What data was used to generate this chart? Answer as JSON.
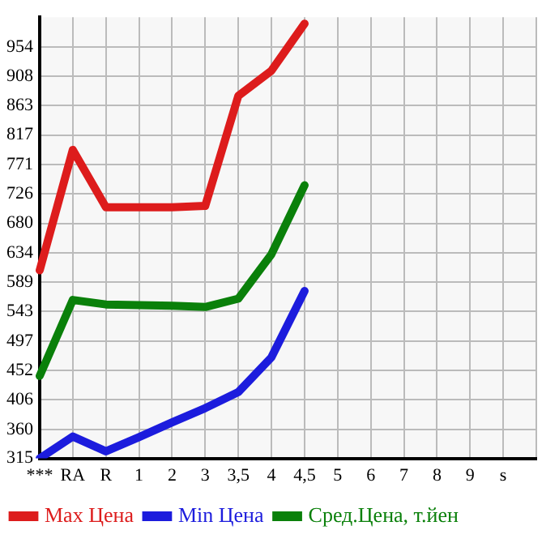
{
  "chart_data": {
    "type": "line",
    "categories": [
      "***",
      "RA",
      "R",
      "1",
      "2",
      "3",
      "3,5",
      "4",
      "4,5",
      "5",
      "6",
      "7",
      "8",
      "9",
      "s",
      null
    ],
    "series": [
      {
        "name": "Max Цена",
        "color": "#dd1c1c",
        "values": [
          607,
          794,
          705,
          705,
          705,
          707,
          878,
          917,
          990,
          null,
          null,
          null,
          null,
          null,
          null,
          null
        ]
      },
      {
        "name": "Min Цена",
        "color": "#1c1cdd",
        "values": [
          315,
          349,
          326,
          348,
          371,
          393,
          418,
          472,
          575,
          null,
          null,
          null,
          null,
          null,
          null,
          null
        ]
      },
      {
        "name": "Сред.Цена, т.йен",
        "color": "#0a800a",
        "values": [
          443,
          561,
          554,
          553,
          552,
          550,
          563,
          632,
          739,
          null,
          null,
          null,
          null,
          null,
          null,
          null
        ]
      }
    ],
    "ylim": [
      315,
      1000
    ],
    "yticks": [
      315,
      360,
      406,
      452,
      497,
      543,
      589,
      634,
      680,
      726,
      771,
      817,
      863,
      908,
      954
    ],
    "grid": true,
    "legend": "bottom",
    "marker": "none",
    "line_style": "solid"
  }
}
